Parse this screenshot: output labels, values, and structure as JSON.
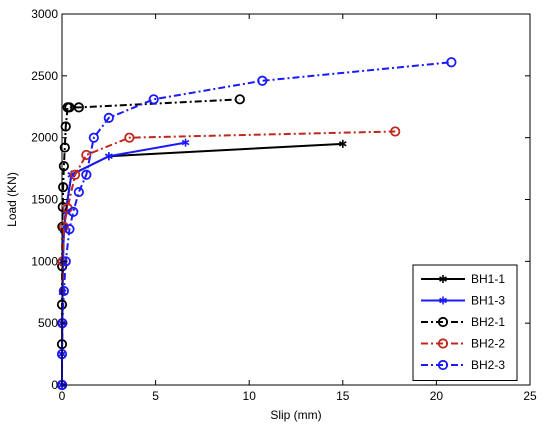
{
  "chart_data": {
    "type": "line",
    "title": "",
    "xlabel": "Slip (mm)",
    "ylabel": "Load (KN)",
    "xlim": [
      0,
      25
    ],
    "ylim": [
      0,
      3000
    ],
    "xticks": [
      0,
      5,
      10,
      15,
      20,
      25
    ],
    "yticks": [
      0,
      500,
      1000,
      1500,
      2000,
      2500,
      3000
    ],
    "legend_position": "bottom-right",
    "grid": false,
    "series": [
      {
        "name": "BH1-1",
        "color": "#000000",
        "line_style": "solid",
        "marker": "star",
        "x": [
          0,
          0,
          0.01,
          0.03,
          0.05,
          0.1,
          0.2,
          0.5,
          2.5,
          15.0
        ],
        "y": [
          0,
          250,
          500,
          750,
          1000,
          1250,
          1400,
          1700,
          1850,
          1950
        ]
      },
      {
        "name": "BH1-3",
        "color": "#1a1aff",
        "line_style": "solid",
        "marker": "star",
        "x": [
          0,
          0,
          0.01,
          0.03,
          0.05,
          0.1,
          0.2,
          0.5,
          2.5,
          6.6
        ],
        "y": [
          0,
          250,
          500,
          750,
          1000,
          1250,
          1400,
          1700,
          1850,
          1960
        ]
      },
      {
        "name": "BH2-1",
        "color": "#000000",
        "line_style": "dashdot",
        "marker": "circle",
        "x": [
          0,
          0,
          0,
          0.01,
          0.02,
          0.04,
          0.06,
          0.1,
          0.15,
          0.2,
          0.3,
          0.4,
          0.9,
          9.5
        ],
        "y": [
          0,
          330,
          650,
          960,
          1280,
          1440,
          1600,
          1770,
          1920,
          2090,
          2245,
          2245,
          2245,
          2310
        ]
      },
      {
        "name": "BH2-2",
        "color": "#c0281e",
        "line_style": "dashdot",
        "marker": "circle",
        "x": [
          0,
          0.01,
          0.03,
          0.1,
          0.3,
          0.7,
          1.3,
          3.6,
          17.8
        ],
        "y": [
          0,
          500,
          1000,
          1280,
          1430,
          1700,
          1860,
          2000,
          2050
        ]
      },
      {
        "name": "BH2-3",
        "color": "#1a1aff",
        "line_style": "dashdot",
        "marker": "circle",
        "x": [
          0,
          0,
          0.02,
          0.1,
          0.2,
          0.4,
          0.6,
          0.9,
          1.3,
          1.7,
          2.5,
          4.9,
          10.7,
          20.8
        ],
        "y": [
          0,
          250,
          500,
          760,
          1000,
          1260,
          1400,
          1560,
          1700,
          2000,
          2160,
          2310,
          2460,
          2610
        ]
      }
    ]
  }
}
